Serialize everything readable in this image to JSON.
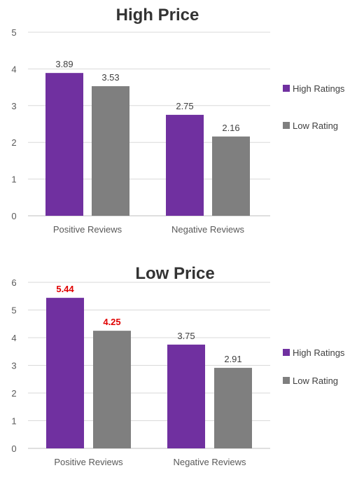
{
  "chart_data": [
    {
      "type": "bar",
      "title": "High Price",
      "categories": [
        "Positive Reviews",
        "Negative Reviews"
      ],
      "series": [
        {
          "name": "High Ratings",
          "values": [
            3.89,
            2.75
          ],
          "color": "#7030A0"
        },
        {
          "name": "Low Rating",
          "values": [
            3.53,
            2.16
          ],
          "color": "#7F7F7F"
        }
      ],
      "ylim": [
        0,
        5
      ],
      "yticks": [
        "0",
        "1",
        "2",
        "3",
        "4",
        "5"
      ],
      "data_labels": [
        [
          "3.89",
          "2.75"
        ],
        [
          "3.53",
          "2.16"
        ]
      ],
      "highlight_labels": [],
      "grid": true,
      "legend": "right"
    },
    {
      "type": "bar",
      "title": "Low Price",
      "categories": [
        "Positive Reviews",
        "Negative Reviews"
      ],
      "series": [
        {
          "name": "High Ratings",
          "values": [
            5.44,
            3.75
          ],
          "color": "#7030A0"
        },
        {
          "name": "Low Rating",
          "values": [
            4.25,
            2.91
          ],
          "color": "#7F7F7F"
        }
      ],
      "ylim": [
        0,
        6
      ],
      "yticks": [
        "0",
        "1",
        "2",
        "3",
        "4",
        "5",
        "6"
      ],
      "data_labels": [
        [
          "5.44",
          "3.75"
        ],
        [
          "4.25",
          "2.91"
        ]
      ],
      "highlight_labels": [
        "5.44",
        "4.25"
      ],
      "highlight_color": "#E00000",
      "grid": true,
      "legend": "right"
    }
  ]
}
